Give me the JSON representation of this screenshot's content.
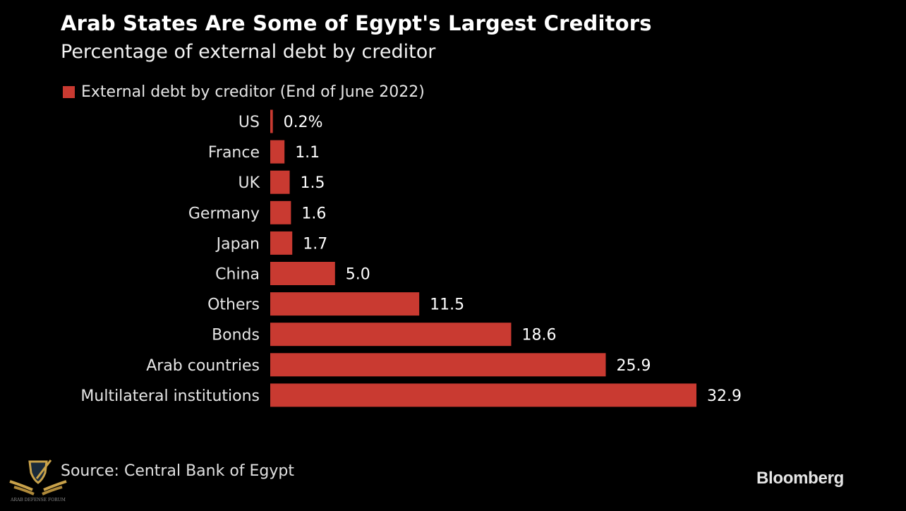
{
  "header": {
    "title": "Arab States Are Some of Egypt's Largest Creditors",
    "subtitle": "Percentage of external debt by creditor"
  },
  "colors": {
    "background": "#000000",
    "bar": "#c93a31",
    "text": "#ffffff"
  },
  "chart_data": {
    "type": "bar",
    "orientation": "horizontal",
    "title": "Arab States Are Some of Egypt's Largest Creditors",
    "subtitle": "Percentage of external debt by creditor",
    "xlabel": "",
    "ylabel": "",
    "unit": "%",
    "legend": {
      "position": "top-left",
      "entries": [
        "External debt by creditor (End of June 2022)"
      ]
    },
    "categories": [
      "US",
      "France",
      "UK",
      "Germany",
      "Japan",
      "China",
      "Others",
      "Bonds",
      "Arab countries",
      "Multilateral institutions"
    ],
    "series": [
      {
        "name": "External debt by creditor (End of June 2022)",
        "values": [
          0.2,
          1.1,
          1.5,
          1.6,
          1.7,
          5.0,
          11.5,
          18.6,
          25.9,
          32.9
        ],
        "labels": [
          "0.2%",
          "1.1",
          "1.5",
          "1.6",
          "1.7",
          "5.0",
          "11.5",
          "18.6",
          "25.9",
          "32.9"
        ]
      }
    ],
    "xlim": [
      0,
      32.9
    ],
    "grid": false
  },
  "footer": {
    "source": "Source: Central Bank of Egypt",
    "brand": "Bloomberg",
    "watermark_text": "ARAB DEFENSE FORUM"
  }
}
